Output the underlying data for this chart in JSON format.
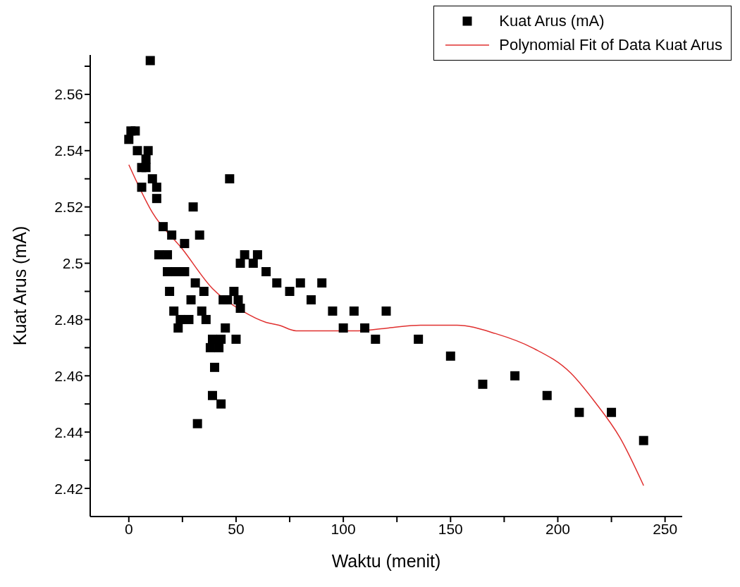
{
  "chart_data": {
    "type": "scatter",
    "xlabel": "Waktu (menit)",
    "ylabel": "Kuat Arus (mA)",
    "xlim": [
      -18,
      258
    ],
    "ylim": [
      2.41,
      2.574
    ],
    "xticks": [
      0,
      {
        "value": 25,
        "label": null
      },
      50,
      {
        "value": 75,
        "label": null
      },
      100,
      {
        "value": 125,
        "label": null
      },
      150,
      {
        "value": 175,
        "label": null
      },
      200,
      {
        "value": 225,
        "label": null
      },
      250
    ],
    "yticks": [
      2.42,
      {
        "value": 2.43,
        "label": null
      },
      2.44,
      {
        "value": 2.45,
        "label": null
      },
      2.46,
      {
        "value": 2.47,
        "label": null
      },
      2.48,
      {
        "value": 2.49,
        "label": null
      },
      2.5,
      {
        "value": 2.51,
        "label": null
      },
      2.52,
      {
        "value": 2.53,
        "label": null
      },
      2.54,
      {
        "value": 2.55,
        "label": null
      },
      2.56,
      {
        "value": 2.57,
        "label": null
      }
    ],
    "legend": "top right",
    "series": [
      {
        "name": "Kuat Arus (mA)",
        "marker": "square",
        "color": "#000000",
        "x": [
          0,
          1,
          3,
          4,
          6,
          6,
          8,
          8,
          9,
          10,
          11,
          13,
          13,
          14,
          16,
          18,
          18,
          19,
          20,
          21,
          22,
          23,
          24,
          26,
          26,
          28,
          29,
          30,
          31,
          32,
          33,
          34,
          35,
          36,
          38,
          39,
          39,
          40,
          42,
          43,
          43,
          44,
          45,
          46,
          47,
          49,
          50,
          51,
          52,
          52,
          54,
          58,
          60,
          64,
          69,
          75,
          80,
          85,
          90,
          95,
          100,
          105,
          110,
          115,
          120,
          135,
          150,
          165,
          180,
          195,
          210,
          225,
          240
        ],
        "values": [
          2.544,
          2.547,
          2.547,
          2.54,
          2.534,
          2.527,
          2.537,
          2.534,
          2.54,
          2.572,
          2.53,
          2.527,
          2.523,
          2.503,
          2.513,
          2.503,
          2.497,
          2.49,
          2.51,
          2.483,
          2.497,
          2.477,
          2.48,
          2.497,
          2.507,
          2.48,
          2.487,
          2.52,
          2.493,
          2.443,
          2.51,
          2.483,
          2.49,
          2.48,
          2.47,
          2.473,
          2.453,
          2.463,
          2.47,
          2.45,
          2.473,
          2.487,
          2.477,
          2.487,
          2.53,
          2.49,
          2.473,
          2.487,
          2.5,
          2.484,
          2.503,
          2.5,
          2.503,
          2.497,
          2.493,
          2.49,
          2.493,
          2.487,
          2.493,
          2.483,
          2.477,
          2.483,
          2.477,
          2.473,
          2.483,
          2.473,
          2.467,
          2.457,
          2.46,
          2.453,
          2.447,
          2.447,
          2.437
        ]
      },
      {
        "name": "Polynomial Fit of Data Kuat Arus",
        "type": "line",
        "color": "#e0302f",
        "x": [
          0,
          11,
          25,
          39,
          53,
          64,
          70,
          78,
          89,
          107,
          121,
          136,
          153,
          171,
          188,
          206,
          217,
          229,
          240
        ],
        "values": [
          2.535,
          2.518,
          2.505,
          2.491,
          2.483,
          2.479,
          2.478,
          2.476,
          2.476,
          2.476,
          2.477,
          2.478,
          2.478,
          2.475,
          2.47,
          2.461,
          2.451,
          2.438,
          2.421
        ]
      }
    ]
  }
}
